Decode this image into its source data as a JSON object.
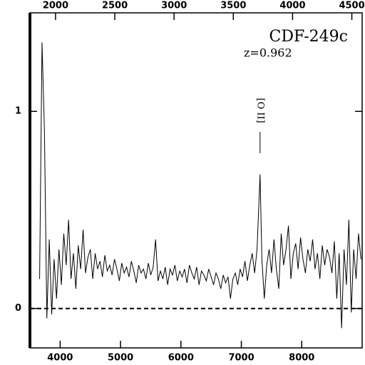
{
  "chart_data": {
    "type": "line",
    "title": "CDF-249c",
    "subtitle": "z=0.962",
    "annotation": {
      "text": "[O II]",
      "x": 7310
    },
    "x": [
      3660,
      3700,
      3740,
      3780,
      3820,
      3860,
      3900,
      3940,
      3980,
      4020,
      4060,
      4100,
      4140,
      4180,
      4220,
      4260,
      4300,
      4340,
      4380,
      4420,
      4460,
      4500,
      4540,
      4580,
      4620,
      4660,
      4700,
      4740,
      4780,
      4820,
      4860,
      4900,
      4940,
      4980,
      5020,
      5060,
      5100,
      5140,
      5180,
      5220,
      5260,
      5300,
      5340,
      5380,
      5420,
      5460,
      5500,
      5540,
      5580,
      5620,
      5660,
      5700,
      5740,
      5780,
      5820,
      5860,
      5900,
      5940,
      5980,
      6020,
      6060,
      6100,
      6140,
      6180,
      6220,
      6260,
      6300,
      6340,
      6380,
      6420,
      6460,
      6500,
      6540,
      6580,
      6620,
      6660,
      6700,
      6740,
      6780,
      6820,
      6860,
      6900,
      6940,
      6980,
      7020,
      7060,
      7100,
      7140,
      7180,
      7220,
      7260,
      7310,
      7340,
      7380,
      7420,
      7460,
      7500,
      7540,
      7580,
      7620,
      7660,
      7700,
      7740,
      7780,
      7820,
      7860,
      7900,
      7940,
      7980,
      8020,
      8060,
      8100,
      8140,
      8180,
      8220,
      8260,
      8300,
      8340,
      8380,
      8420,
      8460,
      8500,
      8540,
      8580,
      8620,
      8660,
      8700,
      8740,
      8780,
      8820,
      8860,
      8900,
      8940,
      8980
    ],
    "series": [
      {
        "color": "#000000",
        "values": [
          0.15,
          1.35,
          0.9,
          -0.05,
          0.35,
          -0.03,
          0.25,
          0.05,
          0.3,
          0.12,
          0.38,
          0.22,
          0.45,
          0.15,
          0.28,
          0.1,
          0.32,
          0.2,
          0.4,
          0.18,
          0.26,
          0.3,
          0.15,
          0.28,
          0.2,
          0.24,
          0.16,
          0.27,
          0.19,
          0.22,
          0.17,
          0.25,
          0.2,
          0.14,
          0.23,
          0.18,
          0.21,
          0.16,
          0.24,
          0.19,
          0.13,
          0.22,
          0.18,
          0.2,
          0.15,
          0.23,
          0.17,
          0.21,
          0.35,
          0.14,
          0.19,
          0.15,
          0.21,
          0.12,
          0.2,
          0.17,
          0.22,
          0.14,
          0.19,
          0.16,
          0.2,
          0.13,
          0.22,
          0.18,
          0.15,
          0.21,
          0.12,
          0.19,
          0.17,
          0.14,
          0.2,
          0.16,
          0.12,
          0.18,
          0.15,
          0.1,
          0.17,
          0.13,
          0.16,
          0.05,
          0.15,
          0.18,
          0.12,
          0.2,
          0.16,
          0.24,
          0.14,
          0.22,
          0.28,
          0.18,
          0.3,
          0.68,
          0.25,
          0.05,
          0.22,
          0.3,
          0.18,
          0.35,
          0.2,
          0.1,
          0.38,
          0.22,
          0.3,
          0.42,
          0.15,
          0.28,
          0.33,
          0.2,
          0.36,
          0.25,
          0.18,
          0.3,
          0.24,
          0.35,
          0.2,
          0.28,
          0.15,
          0.32,
          0.22,
          0.3,
          0.26,
          0.18,
          0.34,
          0.05,
          0.28,
          -0.1,
          0.3,
          0.12,
          0.45,
          -0.02,
          0.3,
          0.15,
          0.38,
          0.25
        ]
      }
    ],
    "xlim": [
      3500,
      9000
    ],
    "xticks": [
      4000,
      5000,
      6000,
      7000,
      8000
    ],
    "x2lim": [
      1784,
      4587
    ],
    "x2ticks": [
      2000,
      2500,
      3000,
      3500,
      4000,
      4500
    ],
    "ylim": [
      -0.2,
      1.5
    ],
    "yticks": [
      0,
      1
    ],
    "zero_line": true
  }
}
